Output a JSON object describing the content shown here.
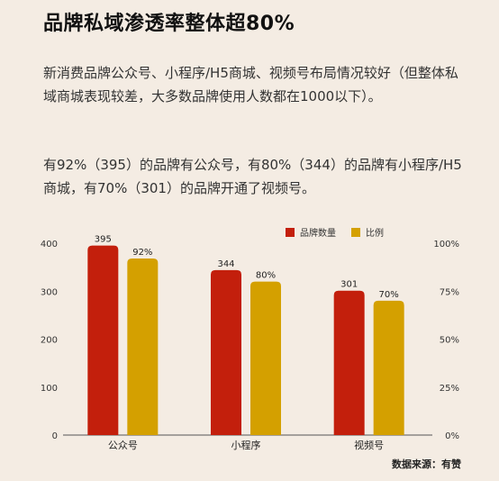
{
  "title": "品牌私域渗透率整体超80%",
  "paragraph1": "新消费品牌公众号、小程序/H5商城、视频号布局情况较好（但整体私域商城表现较差，大多数品牌使用人数都在1000以下）。",
  "paragraph2": "有92%（395）的品牌有公众号，有80%（344）的品牌有小程序/H5商城，有70%（301）的品牌开通了视频号。",
  "source": "数据来源：有赞",
  "colors": {
    "count": "#c31f0c",
    "ratio": "#d4a000"
  },
  "chart_data": {
    "type": "bar",
    "categories": [
      "公众号",
      "小程序",
      "视频号"
    ],
    "series": [
      {
        "name": "品牌数量",
        "values": [
          395,
          344,
          301
        ],
        "labels": [
          "395",
          "344",
          "301"
        ],
        "axis": "left"
      },
      {
        "name": "比例",
        "values": [
          92,
          80,
          70
        ],
        "labels": [
          "92%",
          "80%",
          "70%"
        ],
        "axis": "right"
      }
    ],
    "y_left": {
      "ylim": [
        0,
        400
      ],
      "ticks": [
        "0",
        "100",
        "200",
        "300",
        "400"
      ]
    },
    "y_right": {
      "ylim": [
        0,
        100
      ],
      "ticks": [
        "0%",
        "25%",
        "50%",
        "75%",
        "100%"
      ]
    },
    "legend_position": "top-right",
    "grid": false
  }
}
